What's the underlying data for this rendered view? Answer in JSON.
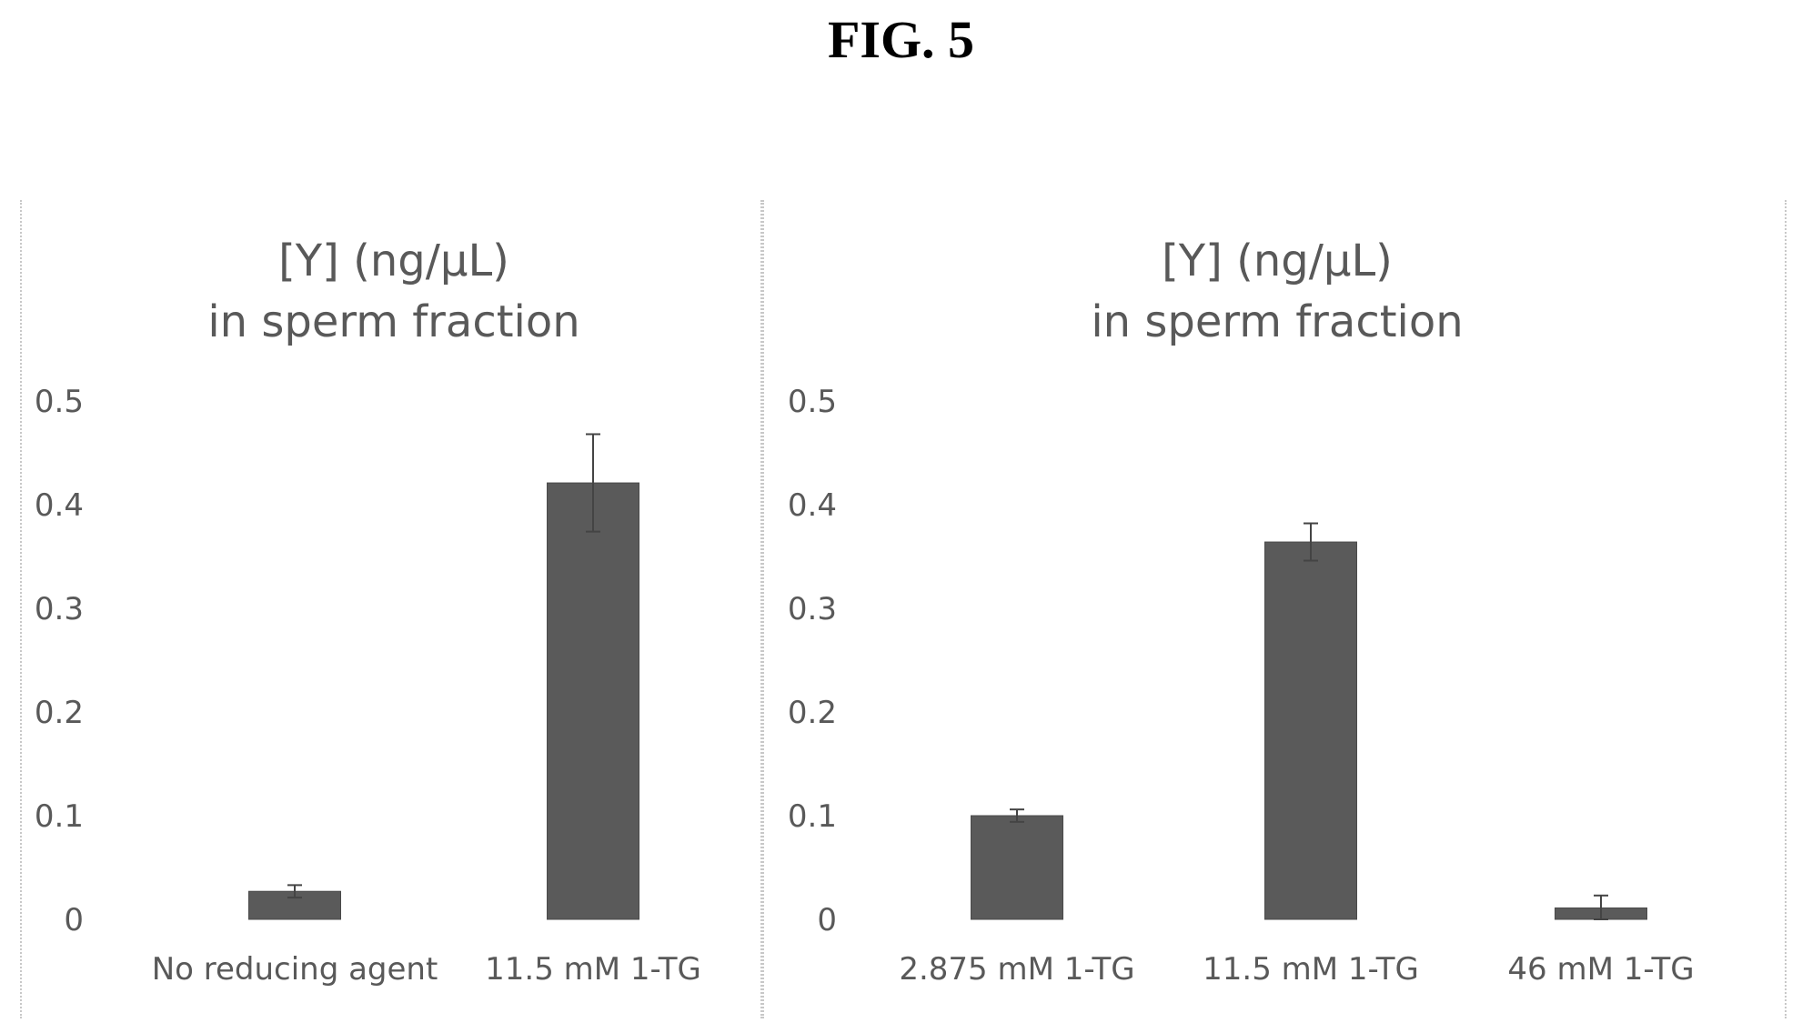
{
  "figure": {
    "title": "FIG. 5"
  },
  "chart_data": [
    {
      "type": "bar",
      "title": [
        "[Y] (ng/µL)",
        "in sperm fraction"
      ],
      "categories": [
        "No reducing  agent",
        "11.5 mM 1-TG"
      ],
      "values": [
        0.027,
        0.421
      ],
      "errors": [
        0.006,
        0.047
      ],
      "ylim": [
        0,
        0.5
      ],
      "yticks": [
        "0",
        "0.1",
        "0.2",
        "0.3",
        "0.4",
        "0.5"
      ],
      "grid": false,
      "bar_color": "#5a5a5a"
    },
    {
      "type": "bar",
      "title": [
        "[Y] (ng/µL)",
        "in sperm fraction"
      ],
      "categories": [
        "2.875 mM 1-TG",
        "11.5 mM 1-TG",
        "46 mM 1-TG"
      ],
      "values": [
        0.1,
        0.364,
        0.011
      ],
      "errors": [
        0.006,
        0.018,
        0.012
      ],
      "ylim": [
        0,
        0.5
      ],
      "yticks": [
        "0",
        "0.1",
        "0.2",
        "0.3",
        "0.4",
        "0.5"
      ],
      "grid": false,
      "bar_color": "#5a5a5a"
    }
  ]
}
